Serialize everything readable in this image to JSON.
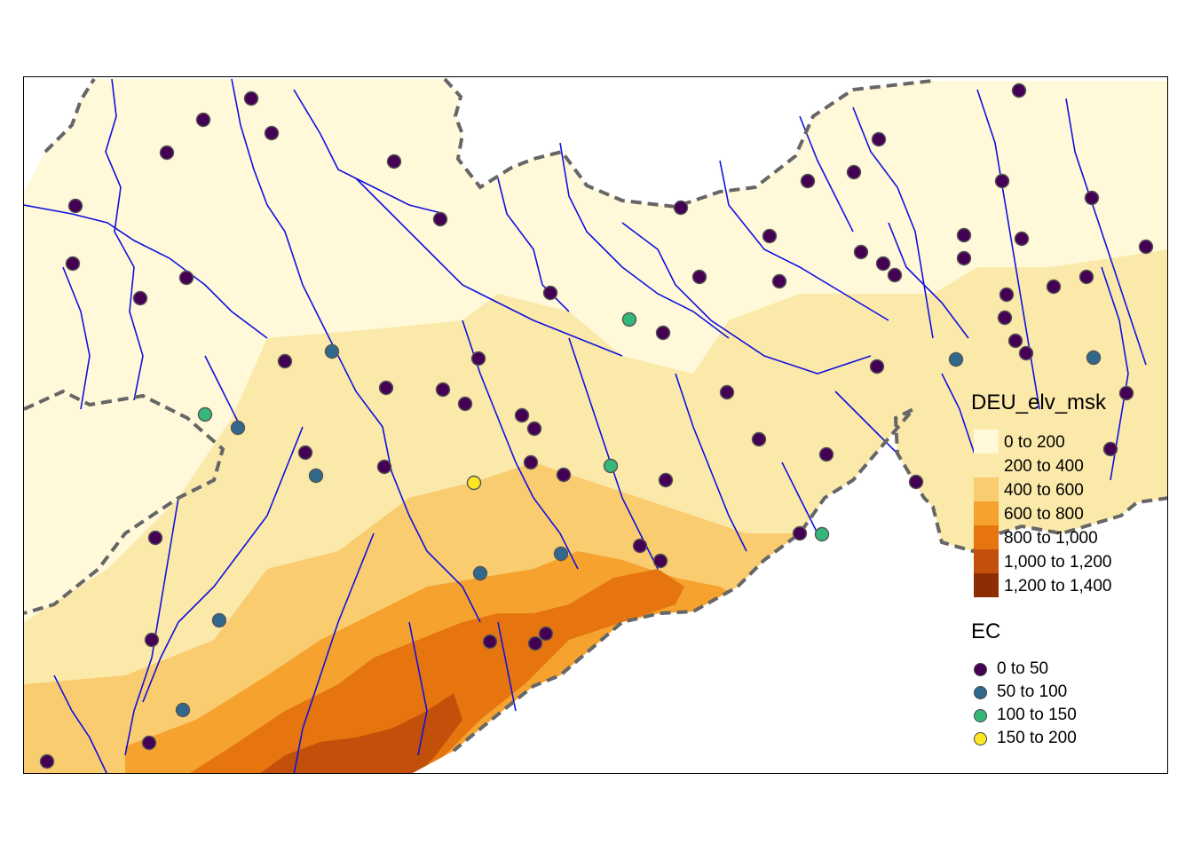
{
  "map": {
    "layers": [
      "elevation raster",
      "rivers",
      "border",
      "stations"
    ],
    "colors": {
      "river": "#1010e0",
      "border": "#666666",
      "station_outline": "#555555"
    }
  },
  "elevation_legend": {
    "title": "DEU_elv_msk",
    "classes": [
      {
        "label": "0 to 200",
        "color": "#fff9d9"
      },
      {
        "label": "200 to 400",
        "color": "#fbe9aa"
      },
      {
        "label": "400 to 600",
        "color": "#f9cc70"
      },
      {
        "label": "600 to 800",
        "color": "#f5a22e"
      },
      {
        "label": "800 to 1,000",
        "color": "#e6740f"
      },
      {
        "label": "1,000 to 1,200",
        "color": "#c3500a"
      },
      {
        "label": "1,200 to 1,400",
        "color": "#8c2d04"
      }
    ]
  },
  "ec_legend": {
    "title": "EC",
    "classes": [
      {
        "label": "0 to 50",
        "color": "#440154"
      },
      {
        "label": "50 to 100",
        "color": "#31688e"
      },
      {
        "label": "100 to 150",
        "color": "#35b779"
      },
      {
        "label": "150 to 200",
        "color": "#fde725"
      }
    ]
  }
}
